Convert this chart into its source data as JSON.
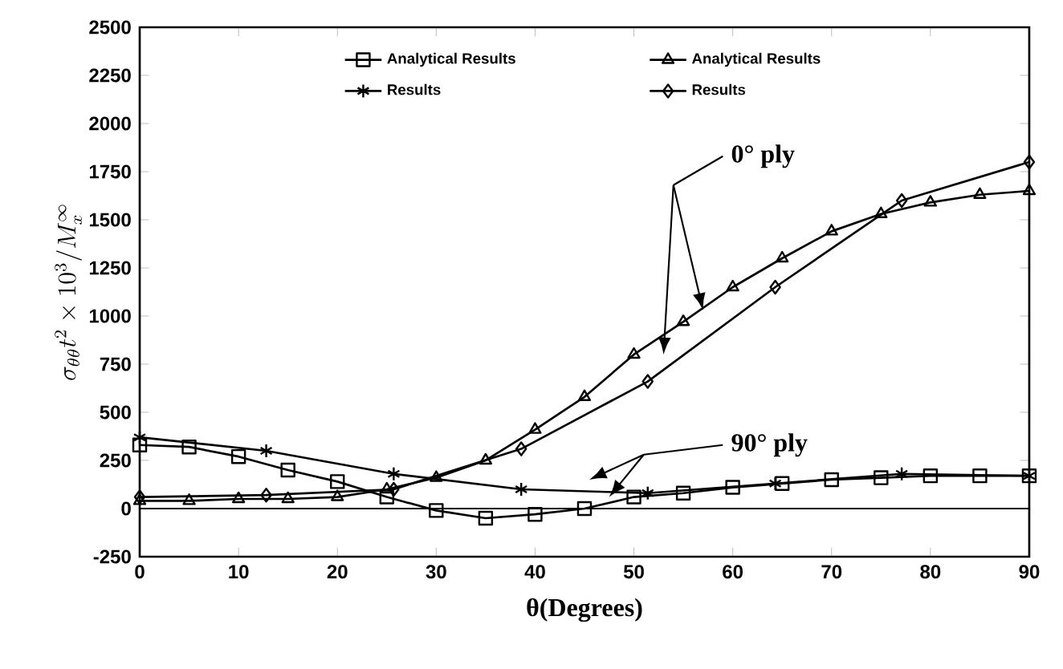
{
  "chart_data": {
    "type": "line",
    "xlabel": "θ(Degrees)",
    "ylabel": "\\sigma_{\\theta\\theta} t^{2} \\times 10^{3} / M_{x}^{\\infty}",
    "xlim": [
      0,
      90
    ],
    "xticks": [
      0,
      10,
      20,
      30,
      40,
      50,
      60,
      70,
      80,
      90
    ],
    "ylim": [
      -250,
      2500
    ],
    "yticks": [
      -250,
      0,
      250,
      500,
      750,
      1000,
      1250,
      1500,
      1750,
      2000,
      2250,
      2500
    ],
    "legend": "top",
    "grid": false,
    "ref_lines": [
      {
        "axis": "y",
        "value": 0,
        "color": "#000000"
      }
    ],
    "annotations": [
      "0° ply",
      "90° ply"
    ],
    "series": [
      {
        "name": "Analytical Results",
        "color": "#000000",
        "marker": "square",
        "x": [
          0,
          5,
          10,
          15,
          20,
          25,
          30,
          35,
          40,
          45,
          50,
          55,
          60,
          65,
          70,
          75,
          80,
          85,
          90
        ],
        "values": [
          330,
          320,
          270,
          200,
          140,
          60,
          -10,
          -50,
          -30,
          0,
          60,
          80,
          110,
          130,
          150,
          160,
          170,
          170,
          170
        ]
      },
      {
        "name": "Analytical Results",
        "color": "#000000",
        "marker": "triangle",
        "x": [
          0,
          5,
          10,
          15,
          20,
          25,
          30,
          35,
          40,
          45,
          50,
          55,
          60,
          65,
          70,
          75,
          80,
          85,
          90
        ],
        "values": [
          40,
          40,
          50,
          50,
          60,
          100,
          160,
          250,
          410,
          580,
          800,
          970,
          1150,
          1300,
          1440,
          1530,
          1590,
          1630,
          1650
        ]
      },
      {
        "name": "Results",
        "color": "#000000",
        "marker": "cross",
        "x": [
          0,
          12.8,
          25.7,
          38.6,
          51.4,
          64.3,
          77.1,
          90
        ],
        "values": [
          370,
          300,
          180,
          100,
          80,
          130,
          180,
          170
        ]
      },
      {
        "name": "Results",
        "color": "#000000",
        "marker": "diamond",
        "x": [
          0,
          12.8,
          25.7,
          38.6,
          51.4,
          64.3,
          77.1,
          90
        ],
        "values": [
          60,
          70,
          100,
          310,
          660,
          1150,
          1600,
          1800
        ]
      }
    ]
  }
}
